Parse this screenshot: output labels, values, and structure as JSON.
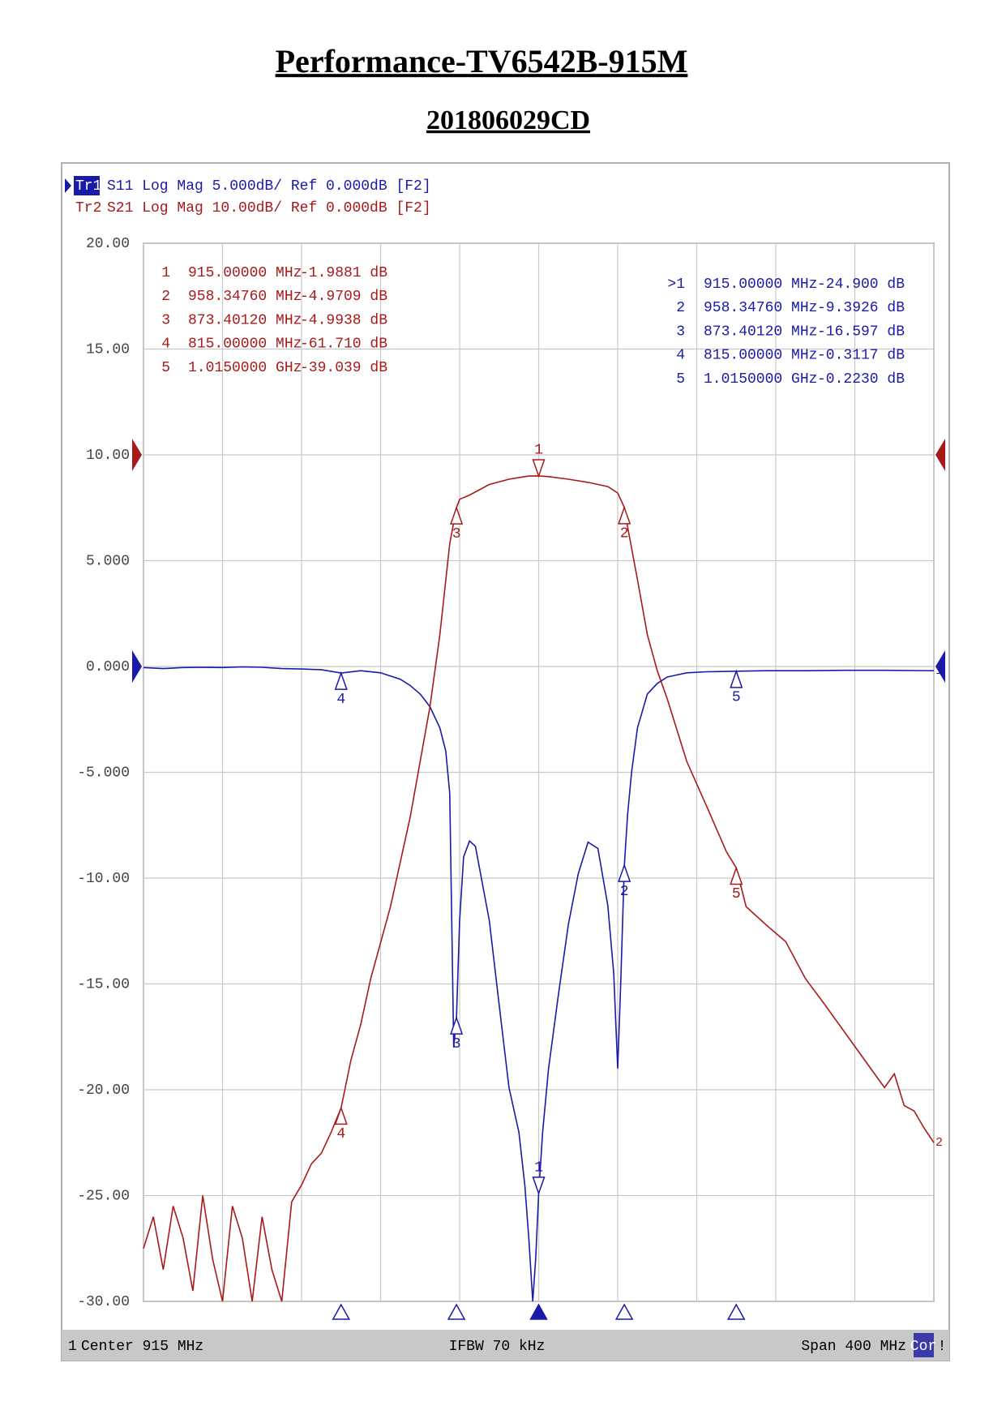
{
  "chart_data": {
    "type": "line",
    "title": "Performance-TV6542B-915M",
    "subtitle": "201806029CD",
    "xlim": [
      715,
      1115
    ],
    "xticks": [
      715,
      755,
      795,
      835,
      875,
      915,
      955,
      995,
      1035,
      1075,
      1115
    ],
    "ylim": [
      -30,
      20
    ],
    "yticks": [
      {
        "value": 20,
        "label": "20.00"
      },
      {
        "value": 15,
        "label": "15.00"
      },
      {
        "value": 10,
        "label": "10.00"
      },
      {
        "value": 5,
        "label": "5.000"
      },
      {
        "value": 0,
        "label": "0.000"
      },
      {
        "value": -5,
        "label": "-5.000"
      },
      {
        "value": -10,
        "label": "-10.00"
      },
      {
        "value": -15,
        "label": "-15.00"
      },
      {
        "value": -20,
        "label": "-20.00"
      },
      {
        "value": -25,
        "label": "-25.00"
      },
      {
        "value": -30,
        "label": "-30.00"
      }
    ],
    "y2lim": [
      -80,
      20
    ],
    "grid": true,
    "series": [
      {
        "name": "Tr1",
        "label": "S11 Log Mag 5.000dB/ Ref 0.000dB [F2]",
        "color": "#1a1aa8",
        "ref": 0,
        "end_label": "1",
        "x": [
          715,
          725,
          735,
          745,
          755,
          765,
          775,
          785,
          795,
          805,
          815,
          825,
          835,
          845,
          850,
          855,
          860,
          865,
          868,
          870,
          872,
          873.4,
          875,
          877,
          880,
          883,
          885,
          890,
          895,
          900,
          905,
          908,
          910,
          912,
          913.5,
          915,
          917,
          920,
          925,
          930,
          935,
          940,
          945,
          950,
          953,
          955,
          956.5,
          958.35,
          960,
          962,
          965,
          970,
          975,
          980,
          985,
          990,
          1000,
          1015,
          1030,
          1050,
          1070,
          1090,
          1115
        ],
        "values": [
          -0.05,
          -0.1,
          -0.05,
          -0.04,
          -0.05,
          -0.02,
          -0.04,
          -0.1,
          -0.12,
          -0.15,
          -0.3117,
          -0.2,
          -0.3,
          -0.6,
          -0.9,
          -1.3,
          -1.9,
          -2.9,
          -4.0,
          -6,
          -18,
          -16.597,
          -12,
          -9,
          -8.25,
          -8.5,
          -9.5,
          -12,
          -16,
          -19.9,
          -22,
          -24.5,
          -27,
          -30,
          -28,
          -24.9,
          -22,
          -19,
          -15.5,
          -12.2,
          -9.8,
          -8.3,
          -8.6,
          -11.3,
          -14.5,
          -19,
          -15,
          -9.3926,
          -7,
          -5,
          -2.9,
          -1.3,
          -0.8,
          -0.5,
          -0.4,
          -0.3,
          -0.25,
          -0.223,
          -0.2,
          -0.2,
          -0.18,
          -0.18,
          -0.2
        ],
        "markers": [
          {
            "id": "1",
            "table_id": ">1",
            "freq": 915,
            "freq_label": "915.00000 MHz",
            "value": -24.9,
            "value_label": "-24.900 dB"
          },
          {
            "id": "2",
            "freq": 958.3476,
            "freq_label": "958.34760 MHz",
            "value": -9.3926,
            "value_label": "-9.3926 dB"
          },
          {
            "id": "3",
            "freq": 873.4012,
            "freq_label": "873.40120 MHz",
            "value": -16.597,
            "value_label": "-16.597 dB"
          },
          {
            "id": "4",
            "freq": 815,
            "freq_label": "815.00000 MHz",
            "value": -0.3117,
            "value_label": "-0.3117 dB"
          },
          {
            "id": "5",
            "freq": 1015,
            "freq_label": "1.0150000 GHz",
            "value": -0.223,
            "value_label": "-0.2230 dB"
          }
        ]
      },
      {
        "name": "Tr2",
        "label": "S21 Log Mag 10.00dB/ Ref 0.000dB [F2]",
        "color": "#a81a1a",
        "ref": 0,
        "axis": "y2",
        "end_label": "2",
        "x": [
          715,
          720,
          725,
          730,
          735,
          740,
          745,
          750,
          755,
          760,
          765,
          770,
          775,
          780,
          785,
          790,
          795,
          800,
          805,
          810,
          815,
          820,
          825,
          830,
          840,
          850,
          860,
          865,
          870,
          873.4,
          875,
          880,
          890,
          900,
          910,
          915,
          920,
          930,
          940,
          950,
          955,
          958.35,
          960,
          965,
          970,
          975,
          980,
          990,
          1000,
          1010,
          1015,
          1020,
          1030,
          1040,
          1050,
          1060,
          1070,
          1080,
          1090,
          1095,
          1100,
          1105,
          1110,
          1115
        ],
        "values": [
          -75,
          -72,
          -77,
          -71,
          -74,
          -79,
          -70,
          -76,
          -80,
          -71,
          -74,
          -80,
          -72,
          -77,
          -80,
          -70.6,
          -69,
          -67,
          -66,
          -64,
          -61.71,
          -57.2,
          -53.8,
          -49.5,
          -42.7,
          -34.2,
          -23.8,
          -17,
          -8.4,
          -4.9938,
          -4.2,
          -3.8,
          -2.8,
          -2.3,
          -2.0,
          -1.9881,
          -2.05,
          -2.3,
          -2.6,
          -3.0,
          -3.6,
          -4.9709,
          -6.8,
          -11.8,
          -17,
          -20.4,
          -23,
          -29,
          -33.2,
          -37.5,
          -39.039,
          -42.7,
          -44.4,
          -46,
          -49.5,
          -52,
          -54.6,
          -57.2,
          -59.8,
          -58.5,
          -61.5,
          -62,
          -63.6,
          -65
        ],
        "markers": [
          {
            "id": "1",
            "freq": 915,
            "freq_label": "915.00000 MHz",
            "value": -1.9881,
            "value_label": "-1.9881 dB"
          },
          {
            "id": "2",
            "freq": 958.3476,
            "freq_label": "958.34760 MHz",
            "value": -4.9709,
            "value_label": "-4.9709 dB"
          },
          {
            "id": "3",
            "freq": 873.4012,
            "freq_label": "873.40120 MHz",
            "value": -4.9938,
            "value_label": "-4.9938 dB"
          },
          {
            "id": "4",
            "freq": 815,
            "freq_label": "815.00000 MHz",
            "value": -61.71,
            "value_label": "-61.710 dB"
          },
          {
            "id": "5",
            "freq": 1015,
            "freq_label": "1.0150000 GHz",
            "value": -39.039,
            "value_label": "-39.039 dB"
          }
        ]
      }
    ],
    "status": {
      "channel": "1",
      "center": "Center 915 MHz",
      "ifbw": "IFBW 70 kHz",
      "span": "Span 400 MHz",
      "cor": "Cor",
      "flag": "!"
    }
  }
}
